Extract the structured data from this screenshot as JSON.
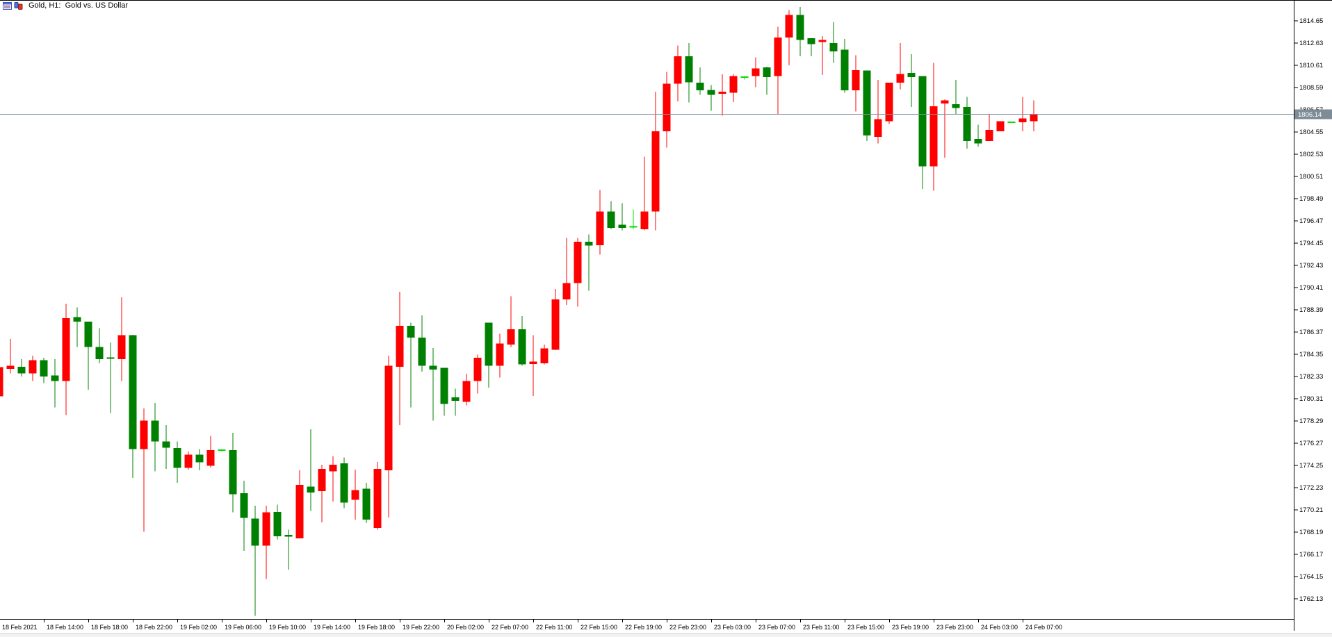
{
  "window": {
    "title": "Gold, H1:  Gold vs. US Dollar",
    "icons": [
      "chart-window-icon",
      "bar-chart-icon"
    ]
  },
  "chart_data": {
    "type": "candlestick",
    "title": "Gold, H1:  Gold vs. US Dollar",
    "symbol": "Gold",
    "timeframe": "H1",
    "subtitle": "Gold vs. US Dollar",
    "current_price": 1806.14,
    "current_price_label": "1806.14",
    "ylim": [
      1760.3,
      1816.5
    ],
    "grid": "off",
    "legend": "none",
    "price_axis": {
      "side": "right",
      "step": 2.02,
      "labels": [
        "1814.65",
        "1812.63",
        "1810.61",
        "1808.59",
        "1806.57",
        "1804.55",
        "1802.53",
        "1800.51",
        "1798.49",
        "1796.47",
        "1794.45",
        "1792.43",
        "1790.41",
        "1788.39",
        "1786.37",
        "1784.35",
        "1782.33",
        "1780.31",
        "1778.29",
        "1776.27",
        "1774.25",
        "1772.23",
        "1770.21",
        "1768.19",
        "1766.17",
        "1764.15",
        "1762.13"
      ]
    },
    "time_axis": {
      "labels": [
        "18 Feb 2021",
        "18 Feb 14:00",
        "18 Feb 18:00",
        "18 Feb 22:00",
        "19 Feb 02:00",
        "19 Feb 06:00",
        "19 Feb 10:00",
        "19 Feb 14:00",
        "19 Feb 18:00",
        "19 Feb 22:00",
        "20 Feb 02:00",
        "22 Feb 07:00",
        "22 Feb 11:00",
        "22 Feb 15:00",
        "22 Feb 19:00",
        "22 Feb 23:00",
        "23 Feb 03:00",
        "23 Feb 07:00",
        "23 Feb 11:00",
        "23 Feb 15:00",
        "23 Feb 19:00",
        "23 Feb 23:00",
        "24 Feb 03:00",
        "24 Feb 07:00"
      ],
      "candles_per_label": 4
    },
    "candles_ohlc": [
      [
        1780.5,
        1783.4,
        1780.3,
        1783.15
      ],
      [
        1783.0,
        1785.7,
        1782.6,
        1783.3
      ],
      [
        1783.2,
        1783.9,
        1782.3,
        1782.6
      ],
      [
        1782.6,
        1784.2,
        1781.9,
        1783.8
      ],
      [
        1783.8,
        1784.0,
        1781.7,
        1782.3
      ],
      [
        1782.4,
        1783.9,
        1779.5,
        1781.9
      ],
      [
        1781.9,
        1788.9,
        1778.8,
        1787.6
      ],
      [
        1787.7,
        1788.6,
        1785.0,
        1787.3
      ],
      [
        1787.3,
        1787.3,
        1781.1,
        1785.0
      ],
      [
        1785.0,
        1786.7,
        1783.5,
        1783.9
      ],
      [
        1784.05,
        1785.4,
        1779.0,
        1784.0
      ],
      [
        1783.9,
        1789.5,
        1781.9,
        1786.05
      ],
      [
        1786.05,
        1786.1,
        1773.1,
        1775.7
      ],
      [
        1775.7,
        1779.4,
        1768.2,
        1778.3
      ],
      [
        1778.3,
        1779.9,
        1773.7,
        1776.4
      ],
      [
        1776.4,
        1777.9,
        1773.9,
        1775.85
      ],
      [
        1775.8,
        1776.4,
        1772.65,
        1774.0
      ],
      [
        1774.0,
        1775.5,
        1773.85,
        1775.2
      ],
      [
        1775.2,
        1775.7,
        1773.8,
        1774.5
      ],
      [
        1774.2,
        1776.9,
        1774.05,
        1775.6
      ],
      [
        1775.6,
        1775.7,
        1775.5,
        1775.6
      ],
      [
        1775.6,
        1777.2,
        1769.95,
        1771.6
      ],
      [
        1771.7,
        1772.85,
        1766.45,
        1769.45
      ],
      [
        1769.4,
        1770.55,
        1760.55,
        1766.95
      ],
      [
        1766.95,
        1770.55,
        1763.9,
        1769.95
      ],
      [
        1770.0,
        1770.65,
        1767.5,
        1767.8
      ],
      [
        1767.9,
        1768.4,
        1764.75,
        1767.75
      ],
      [
        1767.6,
        1773.8,
        1767.6,
        1772.45
      ],
      [
        1772.3,
        1777.5,
        1770.1,
        1771.75
      ],
      [
        1771.9,
        1774.3,
        1769.05,
        1773.9
      ],
      [
        1773.7,
        1775.05,
        1770.95,
        1774.3
      ],
      [
        1774.4,
        1774.95,
        1770.35,
        1770.85
      ],
      [
        1771.1,
        1773.85,
        1769.3,
        1772.0
      ],
      [
        1772.1,
        1772.65,
        1769.0,
        1769.3
      ],
      [
        1768.55,
        1774.55,
        1768.4,
        1773.9
      ],
      [
        1773.8,
        1784.2,
        1769.5,
        1783.3
      ],
      [
        1783.2,
        1790.0,
        1777.9,
        1786.9
      ],
      [
        1786.9,
        1787.2,
        1779.5,
        1785.85
      ],
      [
        1785.85,
        1787.85,
        1782.75,
        1783.3
      ],
      [
        1783.3,
        1784.9,
        1778.3,
        1782.95
      ],
      [
        1783.1,
        1783.1,
        1778.75,
        1779.8
      ],
      [
        1780.4,
        1781.2,
        1778.75,
        1780.1
      ],
      [
        1780.0,
        1782.55,
        1779.7,
        1781.9
      ],
      [
        1781.9,
        1784.3,
        1780.75,
        1784.0
      ],
      [
        1787.2,
        1787.2,
        1781.3,
        1783.3
      ],
      [
        1783.3,
        1786.2,
        1782.2,
        1785.3
      ],
      [
        1785.2,
        1789.6,
        1785.0,
        1786.6
      ],
      [
        1786.6,
        1787.8,
        1783.3,
        1783.4
      ],
      [
        1783.45,
        1786.05,
        1780.55,
        1783.65
      ],
      [
        1783.5,
        1785.2,
        1783.4,
        1784.85
      ],
      [
        1784.75,
        1790.25,
        1784.7,
        1789.3
      ],
      [
        1789.3,
        1794.9,
        1788.8,
        1790.8
      ],
      [
        1790.8,
        1794.9,
        1788.65,
        1794.55
      ],
      [
        1794.55,
        1795.2,
        1790.1,
        1794.2
      ],
      [
        1794.25,
        1799.25,
        1793.4,
        1797.3
      ],
      [
        1797.3,
        1798.25,
        1795.7,
        1795.8
      ],
      [
        1796.1,
        1798.05,
        1795.6,
        1795.8
      ],
      [
        1795.9,
        1797.5,
        1795.7,
        1795.9
      ],
      [
        1795.7,
        1802.3,
        1795.6,
        1797.3
      ],
      [
        1797.3,
        1808.2,
        1795.6,
        1804.6
      ],
      [
        1804.6,
        1810.0,
        1803.1,
        1808.9
      ],
      [
        1808.9,
        1812.4,
        1807.3,
        1811.4
      ],
      [
        1811.4,
        1812.6,
        1807.2,
        1809.05
      ],
      [
        1809.0,
        1810.4,
        1807.9,
        1808.3
      ],
      [
        1808.35,
        1808.8,
        1806.45,
        1807.9
      ],
      [
        1808.0,
        1809.75,
        1806.0,
        1808.2
      ],
      [
        1808.1,
        1809.75,
        1807.25,
        1809.6
      ],
      [
        1809.5,
        1809.6,
        1809.3,
        1809.5
      ],
      [
        1809.6,
        1811.3,
        1808.6,
        1810.3
      ],
      [
        1810.4,
        1810.45,
        1807.9,
        1809.5
      ],
      [
        1809.6,
        1814.1,
        1806.1,
        1813.1
      ],
      [
        1813.1,
        1815.6,
        1810.6,
        1815.15
      ],
      [
        1815.15,
        1815.9,
        1811.4,
        1812.9
      ],
      [
        1813.05,
        1813.05,
        1811.4,
        1812.5
      ],
      [
        1812.7,
        1813.25,
        1809.7,
        1812.9
      ],
      [
        1812.6,
        1814.5,
        1810.8,
        1811.85
      ],
      [
        1812.0,
        1813.0,
        1808.1,
        1808.3
      ],
      [
        1808.3,
        1811.5,
        1806.4,
        1810.15
      ],
      [
        1810.1,
        1810.1,
        1803.7,
        1804.2
      ],
      [
        1804.1,
        1809.25,
        1803.5,
        1805.7
      ],
      [
        1805.5,
        1809.0,
        1805.25,
        1809.0
      ],
      [
        1809.0,
        1812.6,
        1808.4,
        1809.8
      ],
      [
        1809.9,
        1811.6,
        1806.8,
        1809.5
      ],
      [
        1809.6,
        1809.6,
        1799.35,
        1801.4
      ],
      [
        1801.4,
        1810.8,
        1799.2,
        1806.85
      ],
      [
        1807.1,
        1807.5,
        1802.2,
        1807.4
      ],
      [
        1807.05,
        1809.25,
        1806.1,
        1806.7
      ],
      [
        1806.8,
        1807.7,
        1803.0,
        1803.7
      ],
      [
        1803.9,
        1805.2,
        1803.2,
        1803.5
      ],
      [
        1803.7,
        1806.1,
        1803.7,
        1804.7
      ],
      [
        1804.6,
        1805.5,
        1804.6,
        1805.5
      ],
      [
        1805.4,
        1805.45,
        1805.35,
        1805.4
      ],
      [
        1805.4,
        1807.7,
        1804.6,
        1805.75
      ],
      [
        1805.5,
        1807.4,
        1804.6,
        1806.14
      ]
    ],
    "colors": {
      "up_body": "#ff0000",
      "down_body": "#008000",
      "doji": "#00dd00",
      "price_line": "#8091a1",
      "badge_bg": "#7e8c98",
      "badge_text": "#ffffff",
      "axis_line": "#000000",
      "axis_text": "#000000",
      "background": "#ffffff"
    }
  }
}
